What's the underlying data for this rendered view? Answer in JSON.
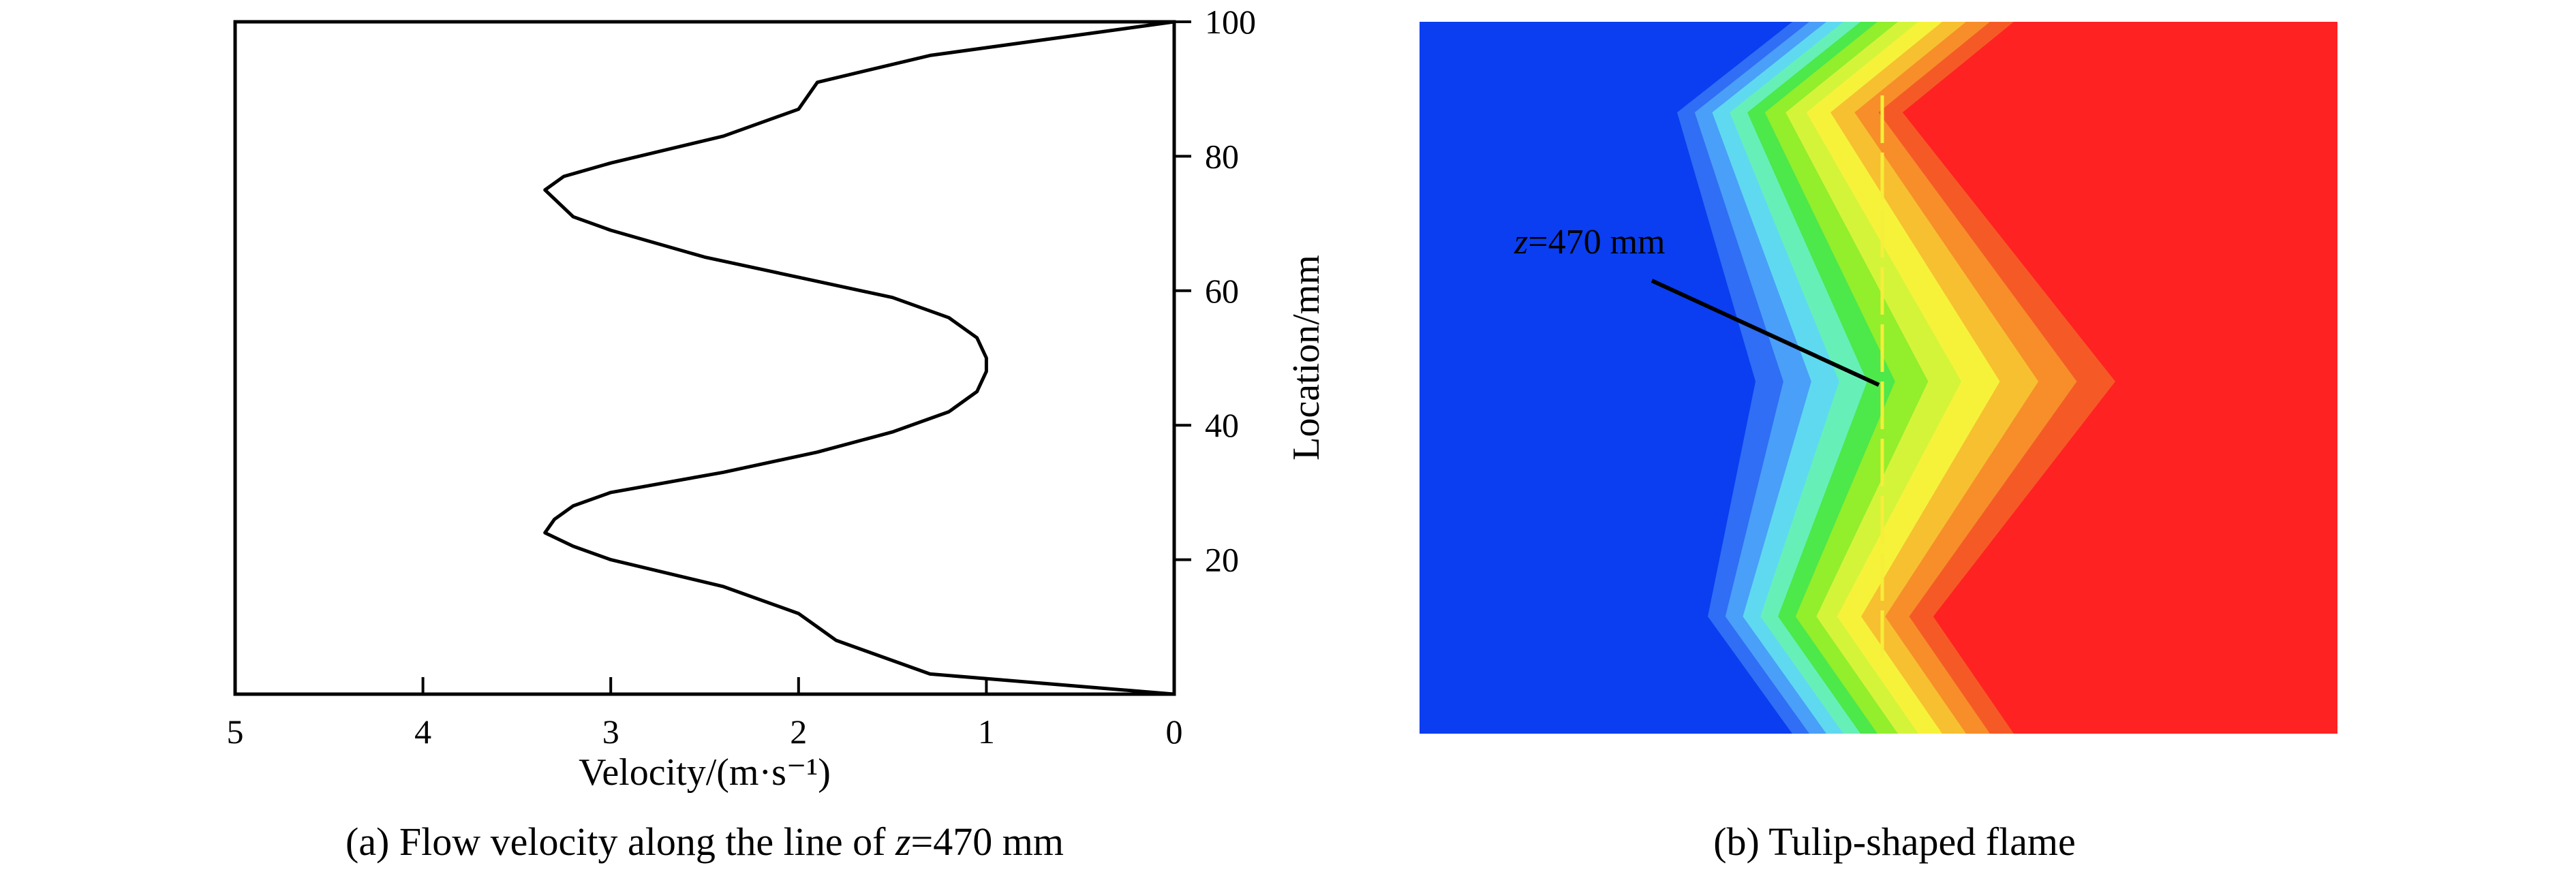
{
  "figure": {
    "panel_a_caption_prefix": "(a) Flow velocity along the line of ",
    "panel_a_caption_var": "z",
    "panel_a_caption_suffix": "=470 mm",
    "panel_b_caption": "(b) Tulip-shaped flame"
  },
  "chart_data": [
    {
      "type": "line",
      "panel": "a",
      "xlabel": "Velocity/(m·s⁻¹)",
      "ylabel": "Location/mm",
      "xlim": [
        5,
        0
      ],
      "x_reversed": true,
      "ylim": [
        0,
        100
      ],
      "y_axis_position": "right",
      "xticks": [
        "5",
        "4",
        "3",
        "2",
        "1",
        "0"
      ],
      "yticks": [
        "20",
        "40",
        "60",
        "80",
        "100"
      ],
      "grid": false,
      "legend": "none",
      "series": [
        {
          "color": "#000000",
          "points": [
            [
              0.0,
              0
            ],
            [
              1.3,
              3
            ],
            [
              1.8,
              8
            ],
            [
              1.9,
              10
            ],
            [
              2.0,
              12
            ],
            [
              2.4,
              16
            ],
            [
              3.0,
              20
            ],
            [
              3.2,
              22
            ],
            [
              3.35,
              24
            ],
            [
              3.3,
              26
            ],
            [
              3.2,
              28
            ],
            [
              3.0,
              30
            ],
            [
              2.4,
              33
            ],
            [
              1.9,
              36
            ],
            [
              1.5,
              39
            ],
            [
              1.2,
              42
            ],
            [
              1.05,
              45
            ],
            [
              1.0,
              48
            ],
            [
              1.0,
              50
            ],
            [
              1.05,
              53
            ],
            [
              1.2,
              56
            ],
            [
              1.5,
              59
            ],
            [
              2.0,
              62
            ],
            [
              2.5,
              65
            ],
            [
              3.0,
              69
            ],
            [
              3.2,
              71
            ],
            [
              3.35,
              75
            ],
            [
              3.25,
              77
            ],
            [
              3.0,
              79
            ],
            [
              2.4,
              83
            ],
            [
              2.0,
              87
            ],
            [
              1.9,
              91
            ],
            [
              1.3,
              95
            ],
            [
              0.0,
              100
            ]
          ]
        }
      ]
    },
    {
      "type": "heatmap",
      "panel": "b",
      "annotation_var": "z",
      "annotation_suffix": "=470 mm",
      "colors": {
        "cold": "#0a3ef0",
        "hot": "#ff2222",
        "bands": [
          "#2f6ef5",
          "#4a9ff8",
          "#5fd9f0",
          "#66f0b8",
          "#4de84a",
          "#93ee2c",
          "#d4f43a",
          "#f6f23a",
          "#f7c030",
          "#f78e2a",
          "#f55a26"
        ],
        "line": "#f5ee3a"
      }
    }
  ]
}
